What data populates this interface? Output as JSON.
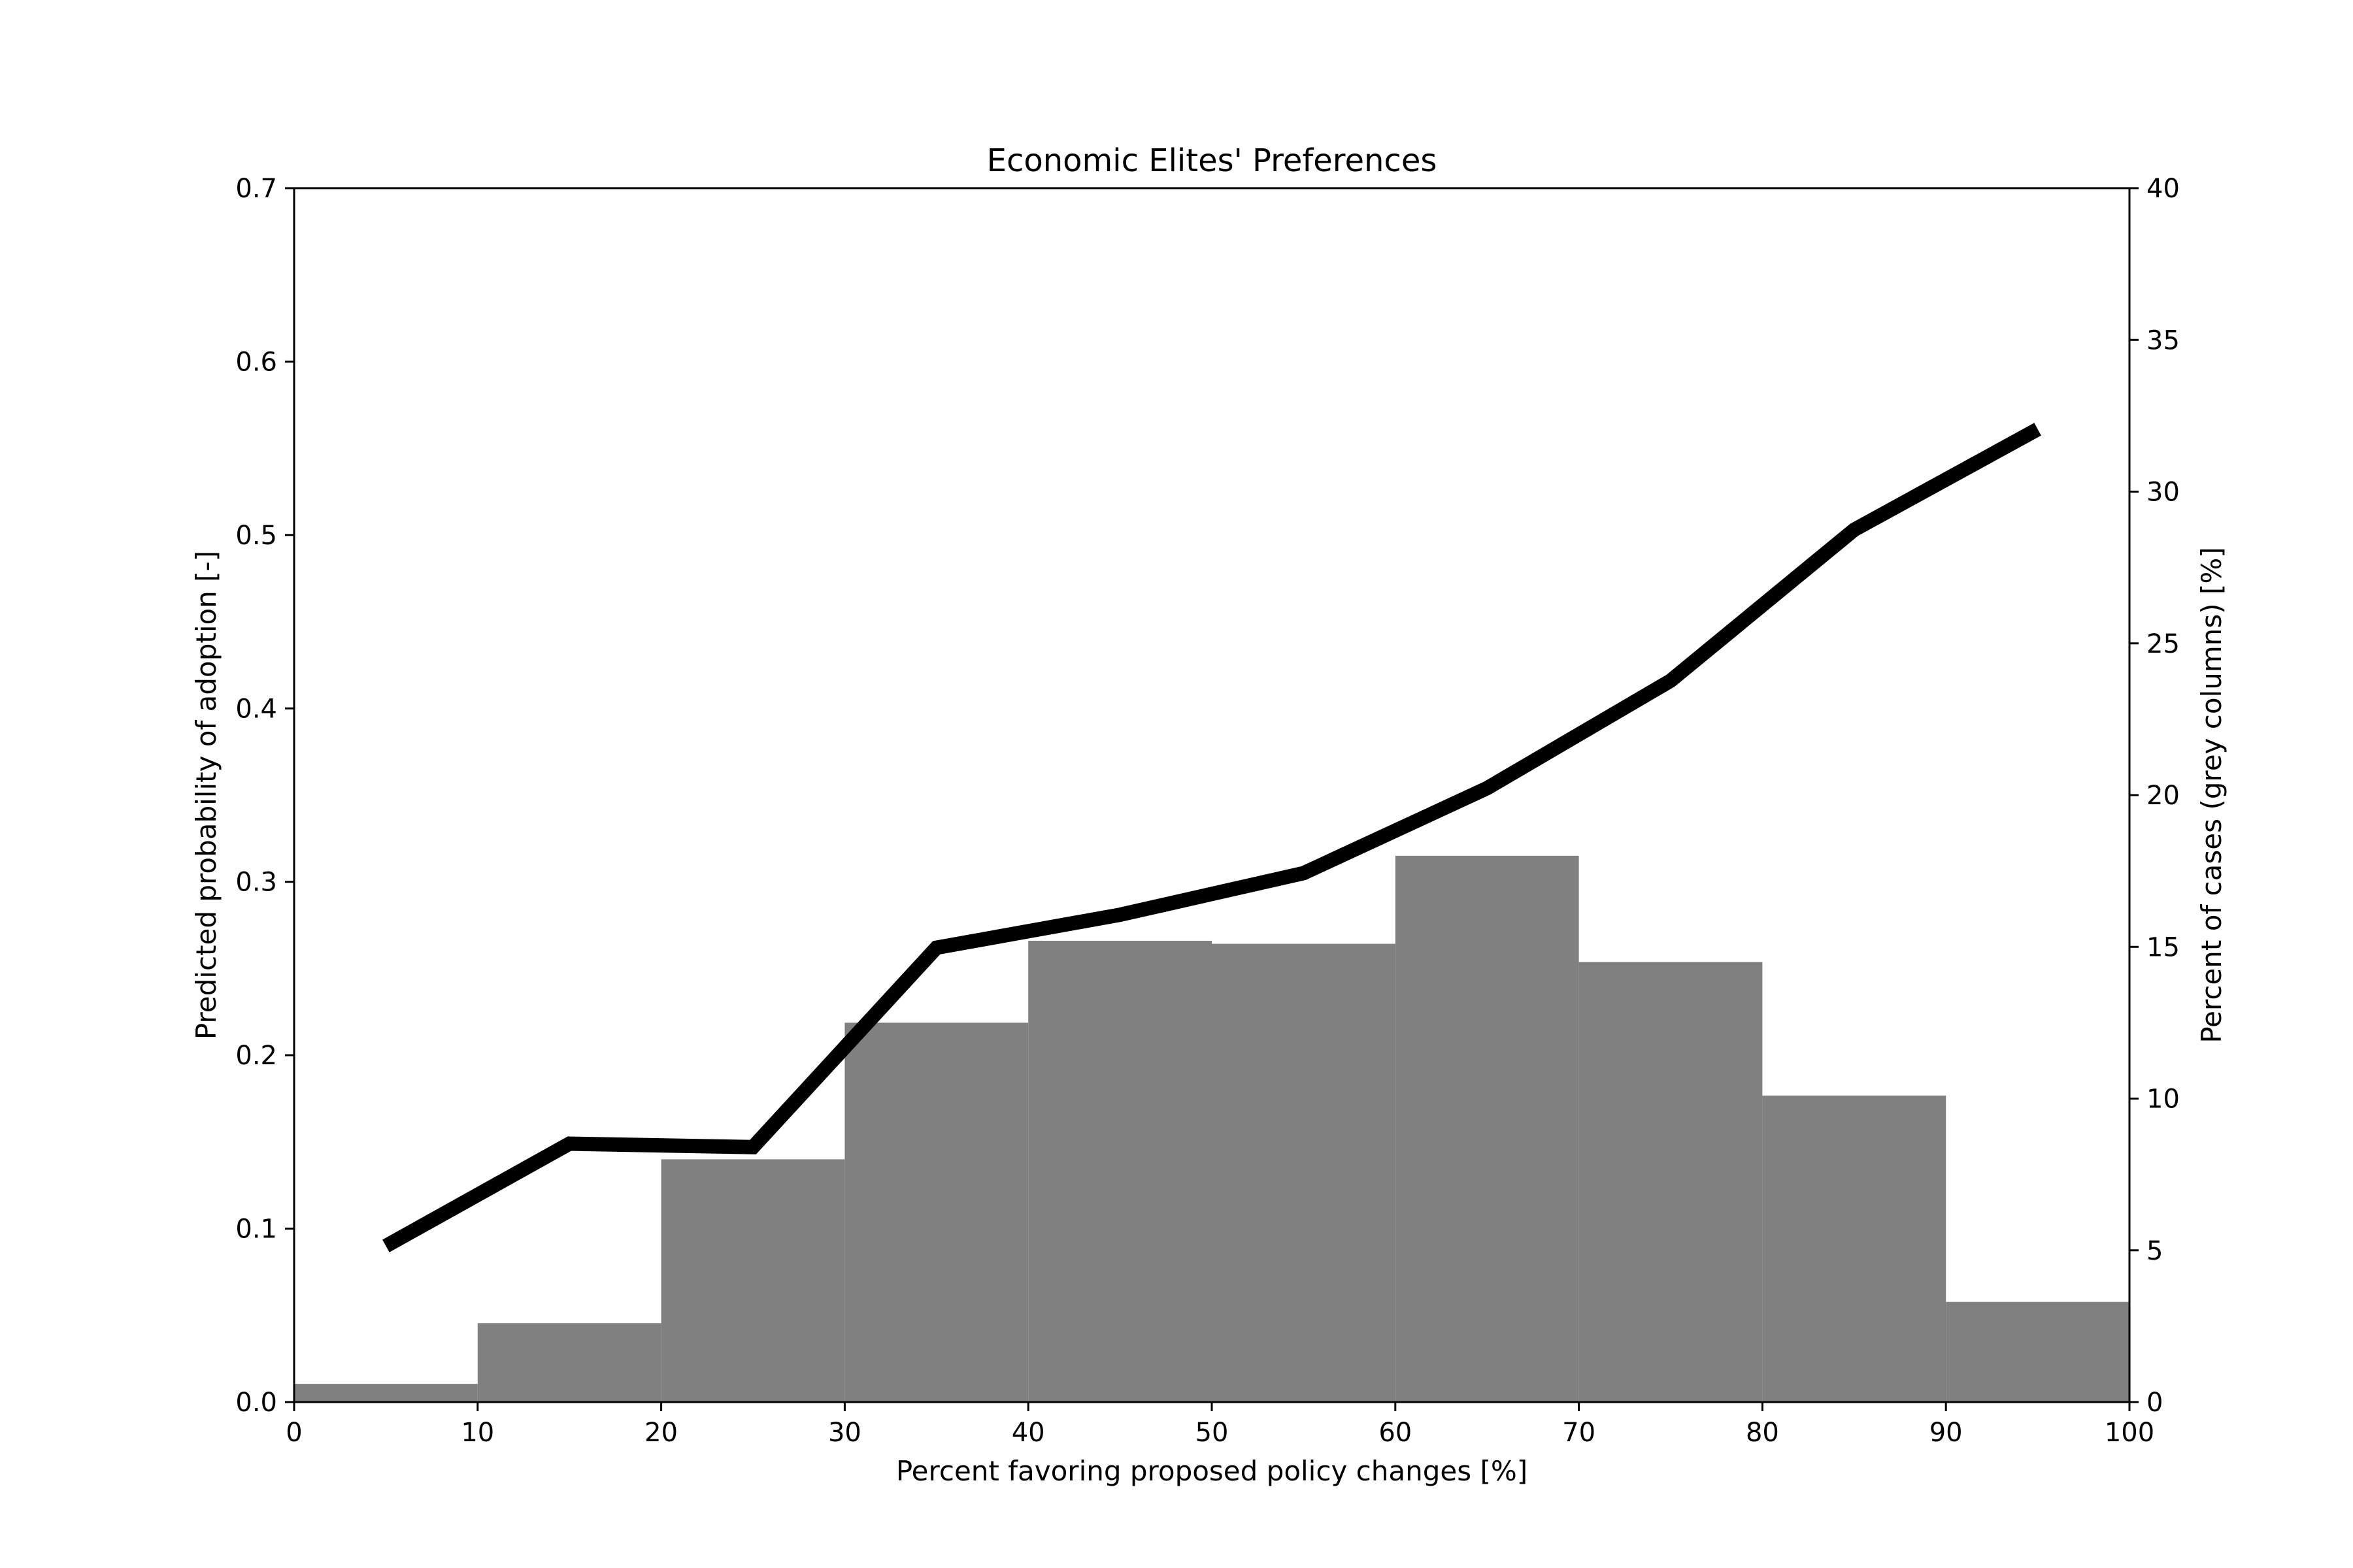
{
  "chart_data": {
    "type": "bar",
    "title": "Economic Elites' Preferences",
    "xlabel": "Percent favoring proposed policy changes [%]",
    "ylabel": "Predicted probability of adoption [-]",
    "y2label": "Percent of cases (grey columns) [%]",
    "xlim": [
      0,
      100
    ],
    "ylim": [
      0,
      0.7
    ],
    "y2lim": [
      0,
      40
    ],
    "xticks": [
      "0",
      "10",
      "20",
      "30",
      "40",
      "50",
      "60",
      "70",
      "80",
      "90",
      "100"
    ],
    "yticks": [
      "0.0",
      "0.1",
      "0.2",
      "0.3",
      "0.4",
      "0.5",
      "0.6",
      "0.7"
    ],
    "y2ticks": [
      "0",
      "5",
      "10",
      "15",
      "20",
      "25",
      "30",
      "35",
      "40"
    ],
    "grid": false,
    "bars": {
      "axis": "right",
      "color": "#808080",
      "bin_edges": [
        0,
        10,
        20,
        30,
        40,
        50,
        60,
        70,
        80,
        90,
        100
      ],
      "values": [
        0.6,
        2.6,
        8.0,
        12.5,
        15.2,
        15.1,
        18.0,
        14.5,
        10.1,
        3.3
      ]
    },
    "line": {
      "axis": "left",
      "color": "#000000",
      "x": [
        5,
        15,
        25,
        35,
        45,
        55,
        65,
        75,
        85,
        95
      ],
      "y": [
        0.09,
        0.149,
        0.147,
        0.262,
        0.281,
        0.305,
        0.354,
        0.416,
        0.503,
        0.561
      ]
    }
  }
}
